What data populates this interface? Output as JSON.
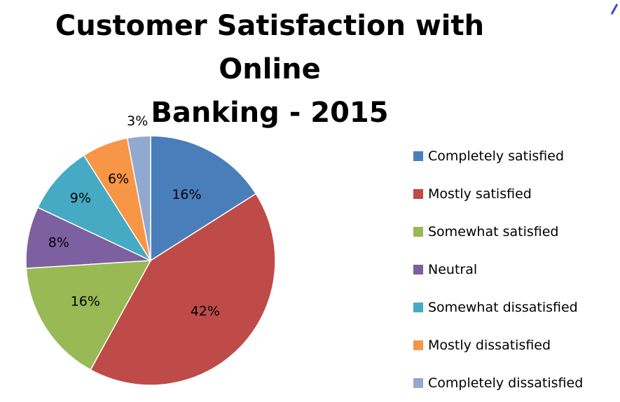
{
  "chart_data": {
    "type": "pie",
    "title_lines": [
      "Customer Satisfaction with Online",
      "Banking - 2015"
    ],
    "start_angle_deg": 0,
    "direction": "clockwise",
    "legend_position": "right",
    "slices": [
      {
        "label": "Completely satisfied",
        "value": 16,
        "display": "16%",
        "color": "#4A7EBB"
      },
      {
        "label": "Mostly satisfied",
        "value": 42,
        "display": "42%",
        "color": "#BE4B48"
      },
      {
        "label": "Somewhat satisfied",
        "value": 16,
        "display": "16%",
        "color": "#98B954"
      },
      {
        "label": "Neutral",
        "value": 8,
        "display": "8%",
        "color": "#7D60A0"
      },
      {
        "label": "Somewhat dissatisfied",
        "value": 9,
        "display": "9%",
        "color": "#46AAC5"
      },
      {
        "label": "Mostly dissatisfied",
        "value": 6,
        "display": "6%",
        "color": "#F79646"
      },
      {
        "label": "Completely dissatisfied",
        "value": 3,
        "display": "3%",
        "color": "#92A9CF"
      }
    ]
  },
  "colors": {
    "slice_border": "#ffffff",
    "corner_mark": "#3b47c9"
  }
}
